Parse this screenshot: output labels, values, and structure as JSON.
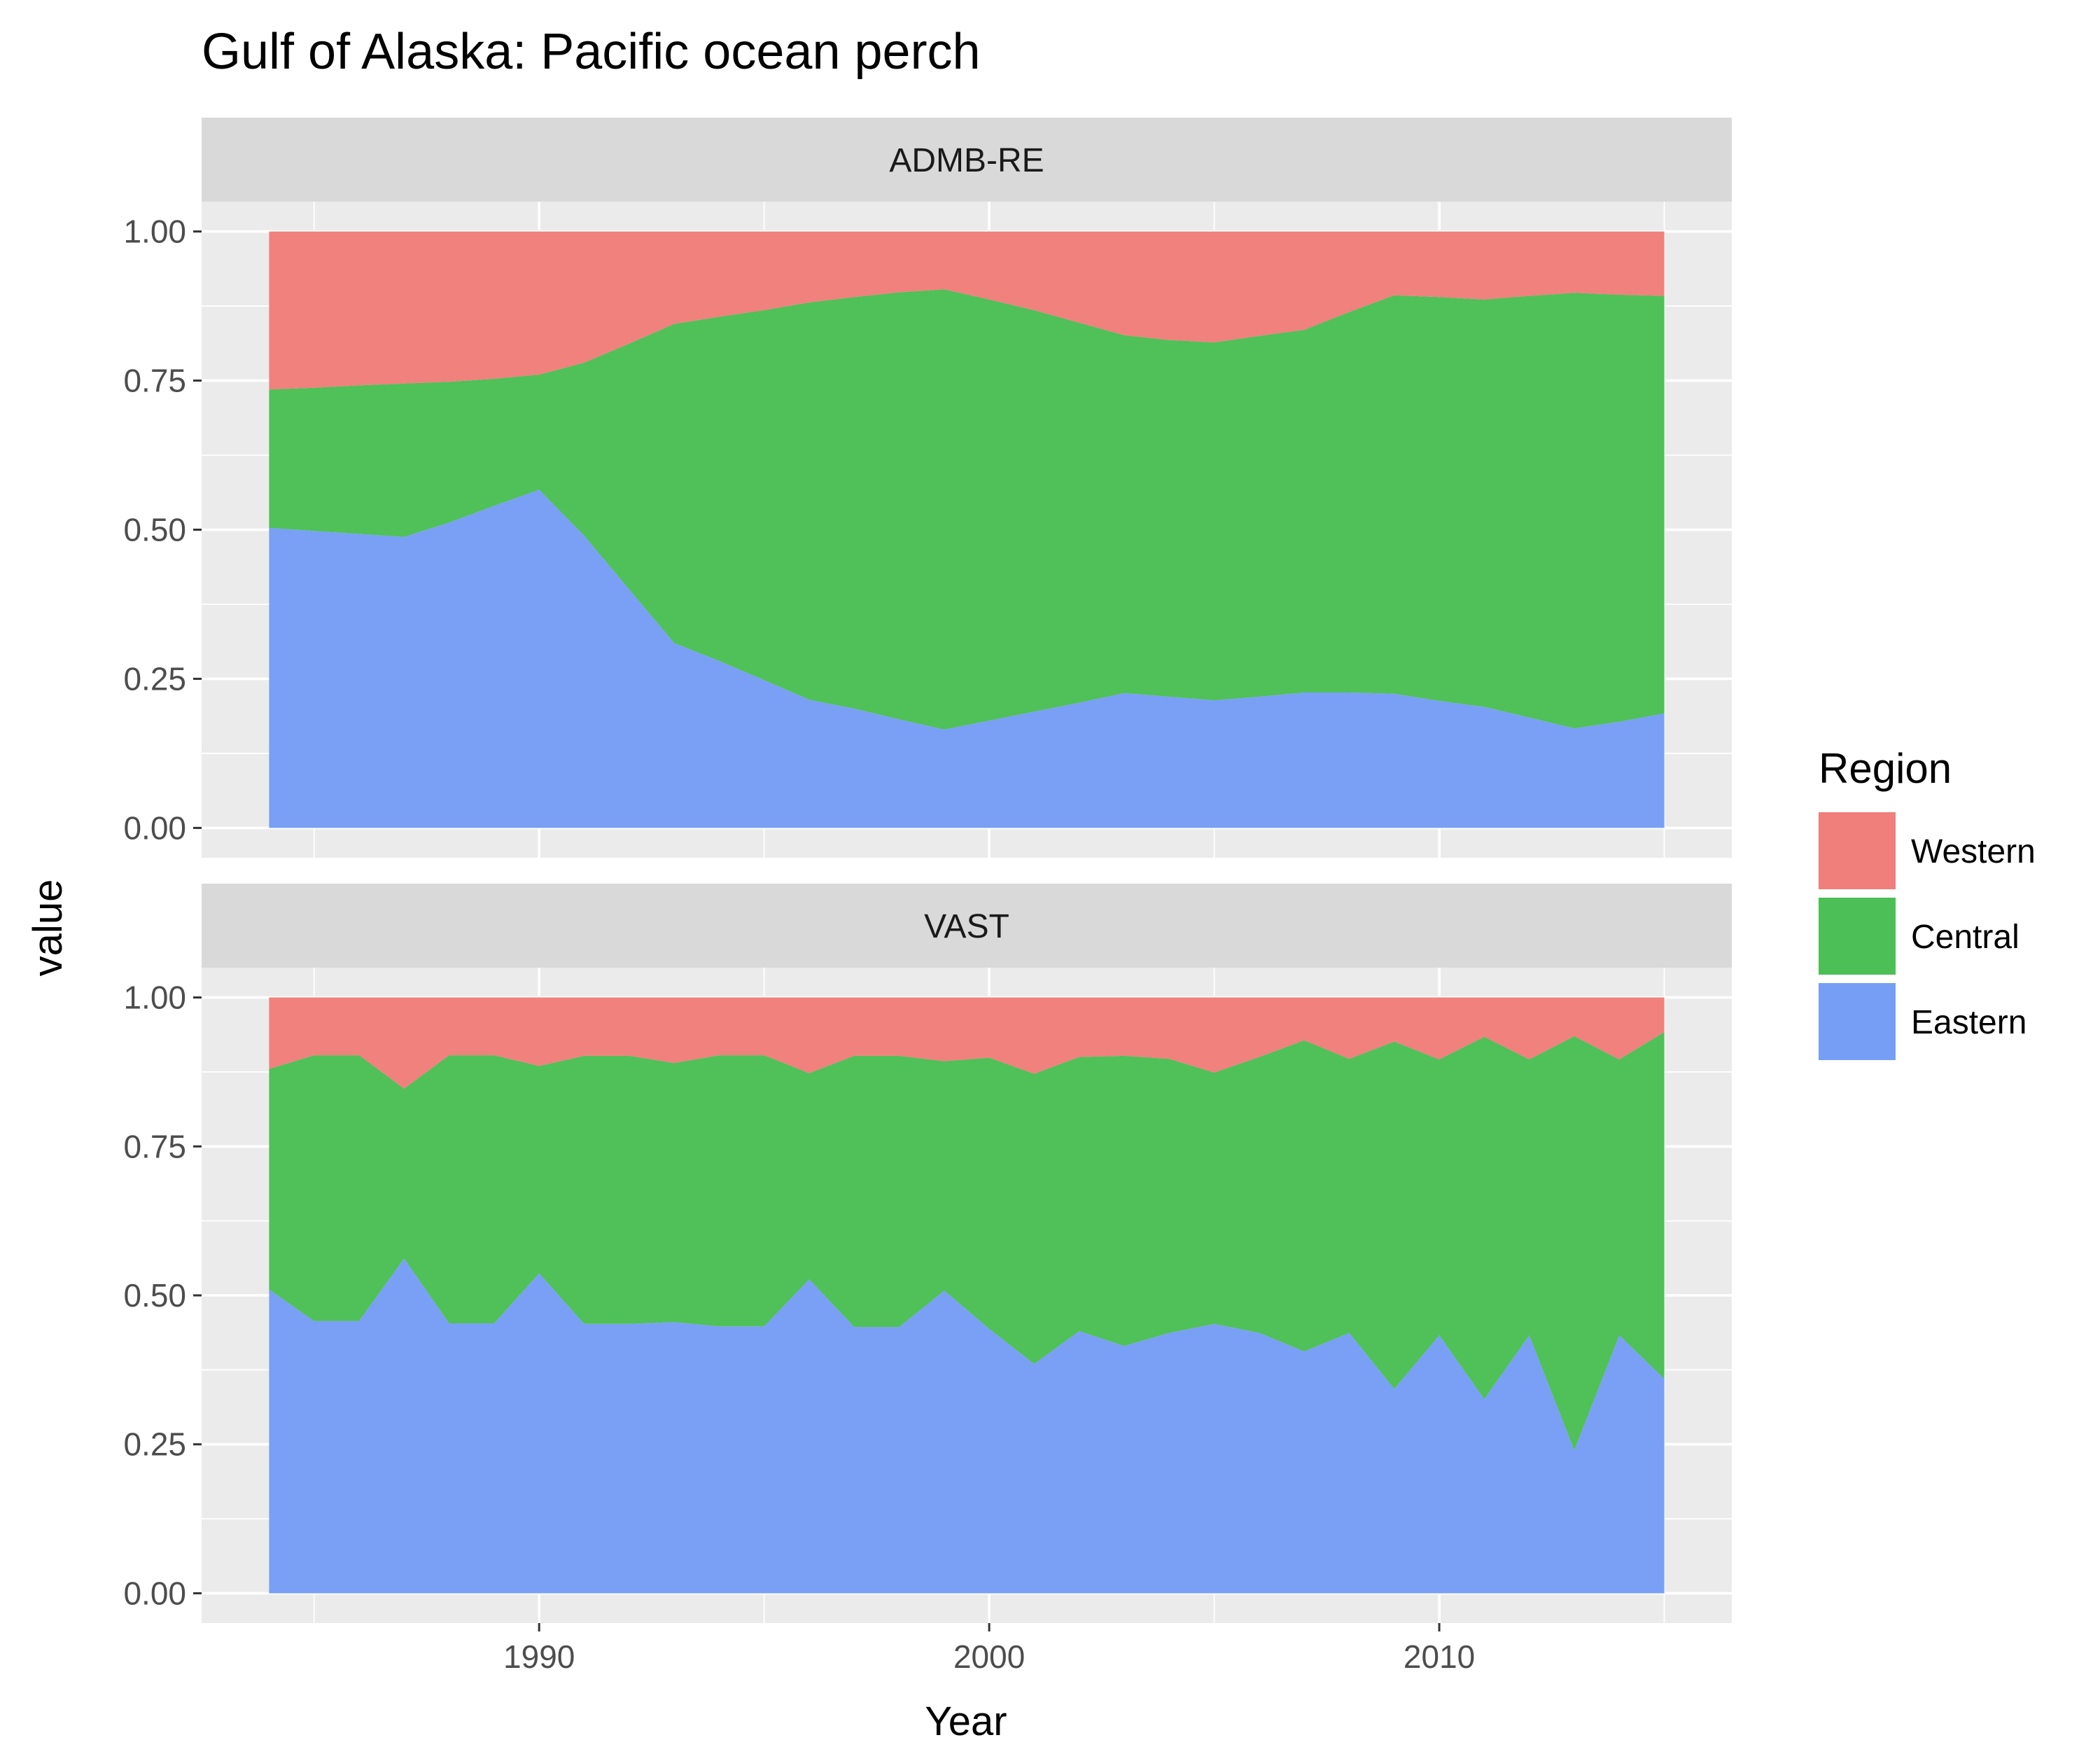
{
  "chart_data": {
    "type": "area",
    "title": "Gulf of Alaska: Pacific ocean perch",
    "xlabel": "Year",
    "ylabel": "value",
    "xlim": [
      1982.5,
      2016.5
    ],
    "ylim": [
      -0.05,
      1.05
    ],
    "x_ticks": [
      1990,
      2000,
      2010
    ],
    "y_ticks": [
      "0.00",
      "0.25",
      "0.50",
      "0.75",
      "1.00"
    ],
    "grid": true,
    "stacked": true,
    "legend": {
      "title": "Region",
      "position": "right",
      "entries": [
        "Western",
        "Central",
        "Eastern"
      ]
    },
    "colors": {
      "Western": "#F07E7A",
      "Central": "#4CBF56",
      "Eastern": "#769EF5"
    },
    "panels": [
      {
        "name": "ADMB-RE",
        "x": [
          1984,
          1985,
          1986,
          1987,
          1988,
          1989,
          1990,
          1991,
          1992,
          1993,
          1994,
          1995,
          1996,
          1997,
          1998,
          1999,
          2000,
          2001,
          2002,
          2003,
          2004,
          2005,
          2006,
          2007,
          2008,
          2009,
          2010,
          2011,
          2012,
          2013,
          2014,
          2015
        ],
        "series": [
          {
            "name": "Eastern",
            "values": [
              0.503,
              0.498,
              0.493,
              0.488,
              0.512,
              0.54,
              0.567,
              0.49,
              0.4,
              0.31,
              0.28,
              0.248,
              0.215,
              0.2,
              0.182,
              0.165,
              0.18,
              0.195,
              0.21,
              0.226,
              0.22,
              0.214,
              0.22,
              0.227,
              0.227,
              0.225,
              0.213,
              0.203,
              0.185,
              0.167,
              0.178,
              0.192
            ]
          },
          {
            "name": "Central",
            "values": [
              0.232,
              0.24,
              0.249,
              0.257,
              0.236,
              0.213,
              0.193,
              0.29,
              0.412,
              0.535,
              0.577,
              0.62,
              0.666,
              0.69,
              0.716,
              0.738,
              0.706,
              0.673,
              0.637,
              0.6,
              0.598,
              0.6,
              0.605,
              0.608,
              0.638,
              0.668,
              0.677,
              0.683,
              0.707,
              0.73,
              0.716,
              0.7
            ]
          },
          {
            "name": "Western",
            "values": [
              0.265,
              0.262,
              0.258,
              0.255,
              0.252,
              0.247,
              0.24,
              0.22,
              0.188,
              0.155,
              0.143,
              0.132,
              0.119,
              0.11,
              0.102,
              0.097,
              0.114,
              0.132,
              0.153,
              0.174,
              0.182,
              0.186,
              0.175,
              0.165,
              0.135,
              0.107,
              0.11,
              0.114,
              0.108,
              0.103,
              0.106,
              0.108
            ]
          }
        ]
      },
      {
        "name": "VAST",
        "x": [
          1984,
          1985,
          1986,
          1987,
          1988,
          1989,
          1990,
          1991,
          1992,
          1993,
          1994,
          1995,
          1996,
          1997,
          1998,
          1999,
          2000,
          2001,
          2002,
          2003,
          2004,
          2005,
          2006,
          2007,
          2008,
          2009,
          2010,
          2011,
          2012,
          2013,
          2014,
          2015
        ],
        "series": [
          {
            "name": "Eastern",
            "values": [
              0.51,
              0.457,
              0.457,
              0.562,
              0.453,
              0.453,
              0.537,
              0.452,
              0.452,
              0.455,
              0.448,
              0.448,
              0.527,
              0.447,
              0.447,
              0.508,
              0.444,
              0.385,
              0.44,
              0.415,
              0.437,
              0.452,
              0.437,
              0.406,
              0.437,
              0.343,
              0.433,
              0.326,
              0.433,
              0.24,
              0.433,
              0.36
            ]
          },
          {
            "name": "Central",
            "values": [
              0.37,
              0.446,
              0.446,
              0.285,
              0.45,
              0.45,
              0.348,
              0.45,
              0.45,
              0.435,
              0.455,
              0.455,
              0.346,
              0.455,
              0.455,
              0.385,
              0.455,
              0.487,
              0.46,
              0.487,
              0.46,
              0.422,
              0.463,
              0.522,
              0.46,
              0.583,
              0.463,
              0.608,
              0.463,
              0.695,
              0.463,
              0.582
            ]
          },
          {
            "name": "Western",
            "values": [
              0.12,
              0.097,
              0.097,
              0.153,
              0.097,
              0.097,
              0.115,
              0.098,
              0.098,
              0.11,
              0.097,
              0.097,
              0.127,
              0.098,
              0.098,
              0.107,
              0.101,
              0.128,
              0.1,
              0.098,
              0.103,
              0.126,
              0.1,
              0.072,
              0.103,
              0.074,
              0.104,
              0.066,
              0.104,
              0.065,
              0.104,
              0.058
            ]
          }
        ]
      }
    ]
  }
}
